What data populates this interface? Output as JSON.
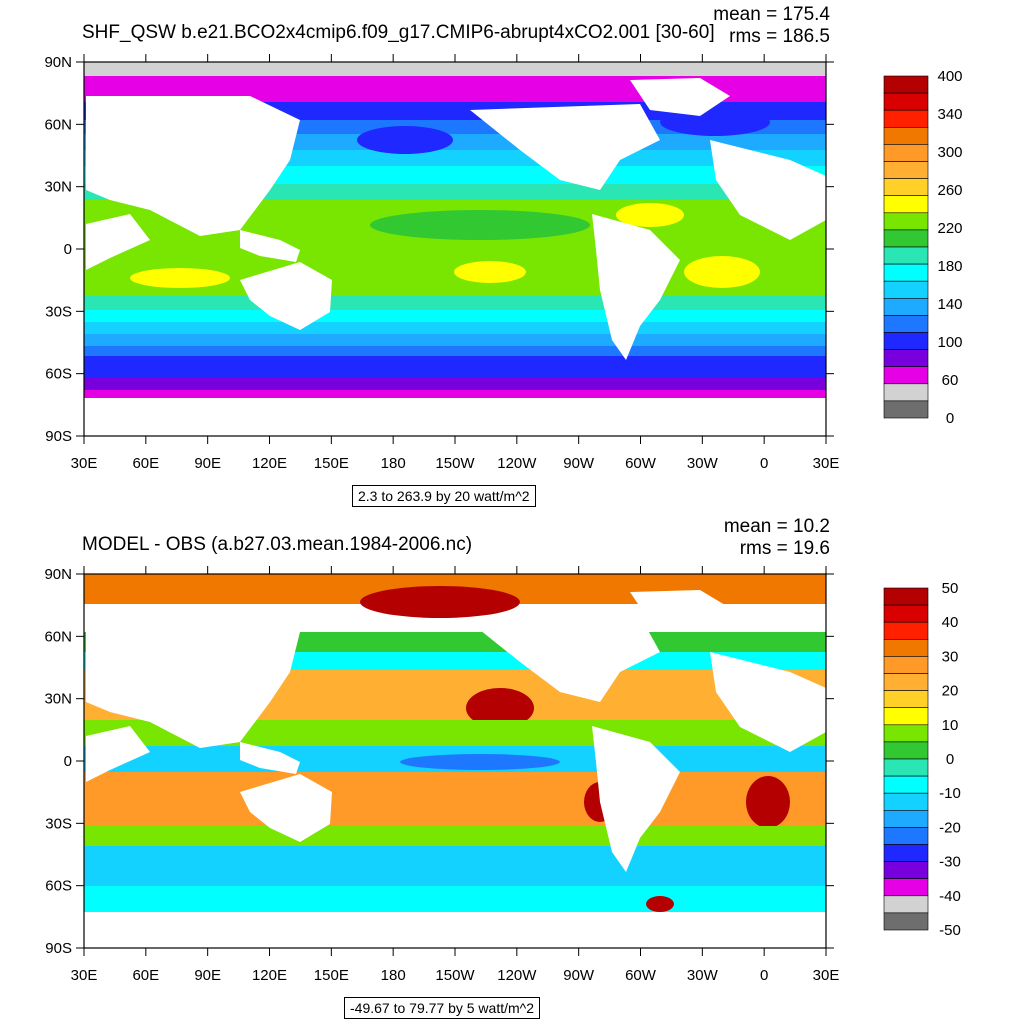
{
  "panels": [
    {
      "title": "SHF_QSW b.e21.BCO2x4cmip6.f09_g17.CMIP6-abrupt4xCO2.001 [30-60]",
      "mean_text": "mean = 175.4",
      "rms_text": "rms = 186.5",
      "range_text": "2.3 to 263.9 by 20 watt/m^2",
      "lat_labels": [
        "90N",
        "60N",
        "30N",
        "0",
        "30S",
        "60S",
        "90S"
      ],
      "lon_labels": [
        "30E",
        "60E",
        "90E",
        "120E",
        "150E",
        "180",
        "150W",
        "120W",
        "90W",
        "60W",
        "30W",
        "0",
        "30E"
      ],
      "colorbar": {
        "labels": [
          "400",
          "340",
          "300",
          "260",
          "220",
          "180",
          "140",
          "100",
          "60",
          "0"
        ],
        "colors": [
          "#b40000",
          "#d80000",
          "#ff2000",
          "#f07800",
          "#ff9a28",
          "#ffb032",
          "#ffd028",
          "#ffff00",
          "#78e600",
          "#32c832",
          "#2ae6b4",
          "#00ffff",
          "#14d2ff",
          "#1eaaff",
          "#1e78ff",
          "#1e28ff",
          "#7800dc",
          "#e600e6",
          "#d2d2d2",
          "#6e6e6e"
        ]
      }
    },
    {
      "title": "MODEL - OBS (a.b27.03.mean.1984-2006.nc)",
      "mean_text": "mean = 10.2",
      "rms_text": "rms = 19.6",
      "range_text": "-49.67 to 79.77 by 5 watt/m^2",
      "lat_labels": [
        "90N",
        "60N",
        "30N",
        "0",
        "30S",
        "60S",
        "90S"
      ],
      "lon_labels": [
        "30E",
        "60E",
        "90E",
        "120E",
        "150E",
        "180",
        "150W",
        "120W",
        "90W",
        "60W",
        "30W",
        "0",
        "30E"
      ],
      "colorbar": {
        "labels": [
          "50",
          "40",
          "30",
          "20",
          "10",
          "0",
          "-10",
          "-20",
          "-30",
          "-40",
          "-50"
        ],
        "colors": [
          "#b40000",
          "#d80000",
          "#ff2000",
          "#f07800",
          "#ff9a28",
          "#ffb032",
          "#ffd028",
          "#ffff00",
          "#78e600",
          "#32c832",
          "#2ae6b4",
          "#00ffff",
          "#14d2ff",
          "#1eaaff",
          "#1e78ff",
          "#1e28ff",
          "#7800dc",
          "#e600e6",
          "#d2d2d2",
          "#6e6e6e"
        ]
      }
    }
  ],
  "colors": {
    "land": "#ffffff",
    "sea_ice": "#d2d2d2"
  }
}
